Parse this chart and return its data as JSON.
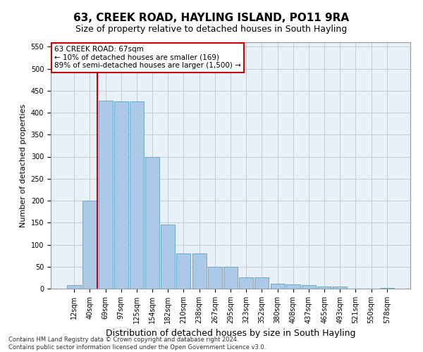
{
  "title": "63, CREEK ROAD, HAYLING ISLAND, PO11 9RA",
  "subtitle": "Size of property relative to detached houses in South Hayling",
  "xlabel": "Distribution of detached houses by size in South Hayling",
  "ylabel": "Number of detached properties",
  "categories": [
    "12sqm",
    "40sqm",
    "69sqm",
    "97sqm",
    "125sqm",
    "154sqm",
    "182sqm",
    "210sqm",
    "238sqm",
    "267sqm",
    "295sqm",
    "323sqm",
    "352sqm",
    "380sqm",
    "408sqm",
    "437sqm",
    "465sqm",
    "493sqm",
    "521sqm",
    "550sqm",
    "578sqm"
  ],
  "values": [
    8,
    200,
    428,
    426,
    425,
    300,
    145,
    80,
    80,
    50,
    50,
    25,
    25,
    12,
    10,
    8,
    5,
    5,
    0,
    0,
    2
  ],
  "bar_color": "#adc9e8",
  "bar_edge_color": "#6aaad4",
  "vline_x_idx": 2,
  "vline_color": "#cc0000",
  "annotation_line1": "63 CREEK ROAD: 67sqm",
  "annotation_line2": "← 10% of detached houses are smaller (169)",
  "annotation_line3": "89% of semi-detached houses are larger (1,500) →",
  "annotation_box_facecolor": "#ffffff",
  "annotation_box_edgecolor": "#cc0000",
  "ylim": [
    0,
    560
  ],
  "yticks": [
    0,
    50,
    100,
    150,
    200,
    250,
    300,
    350,
    400,
    450,
    500,
    550
  ],
  "title_fontsize": 11,
  "subtitle_fontsize": 9,
  "tick_fontsize": 7,
  "ylabel_fontsize": 8,
  "xlabel_fontsize": 9,
  "footer_line1": "Contains HM Land Registry data © Crown copyright and database right 2024.",
  "footer_line2": "Contains public sector information licensed under the Open Government Licence v3.0.",
  "plot_bg_color": "#e8f0f8",
  "fig_bg_color": "#ffffff",
  "grid_color": "#c0ccd8"
}
